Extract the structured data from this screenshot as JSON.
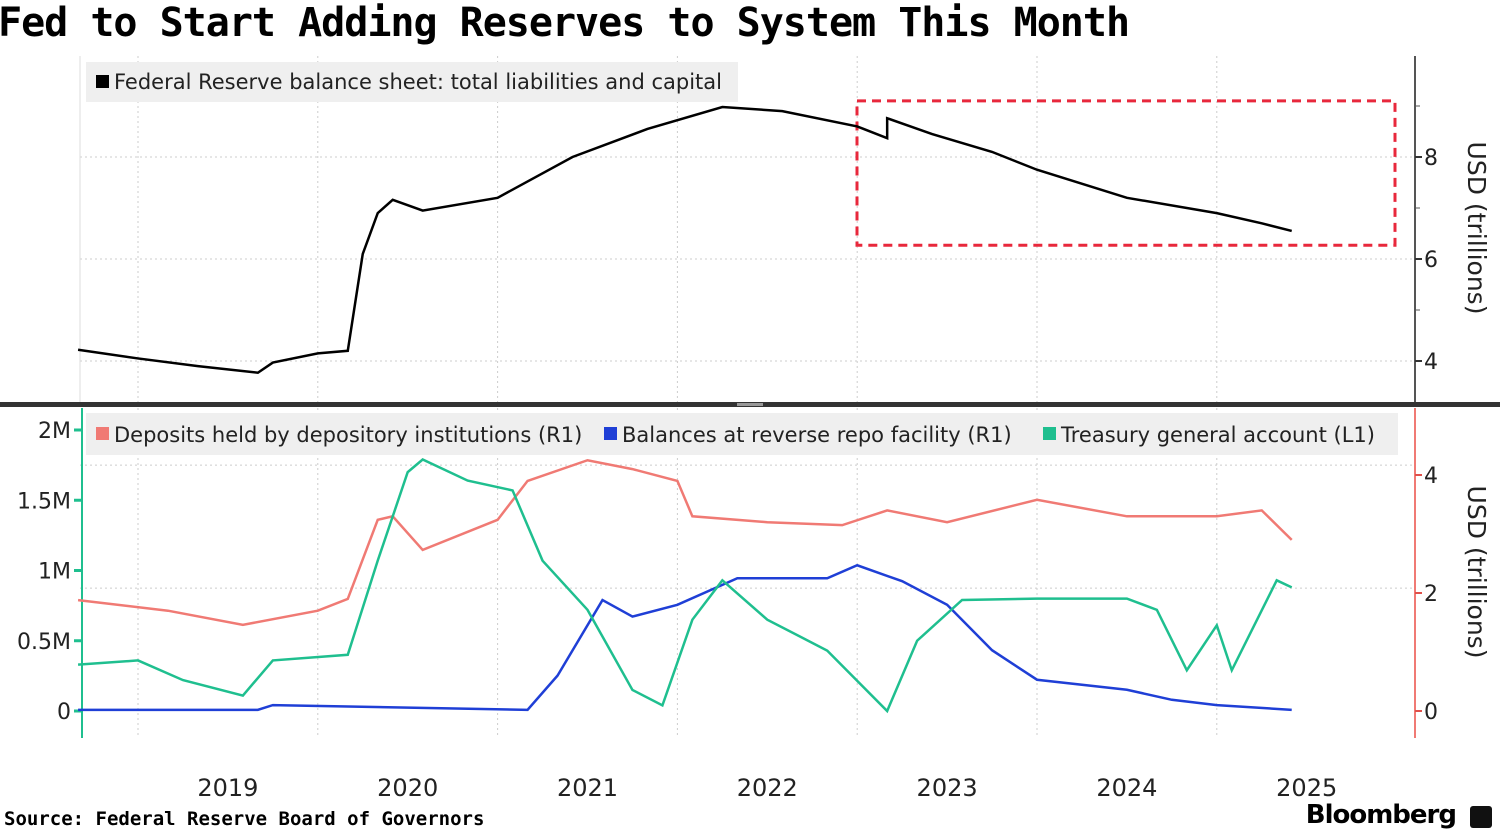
{
  "title": "Fed to Start Adding Reserves to System This Month",
  "source": "Source: Federal Reserve Board of Governors",
  "brand": "Bloomberg",
  "chart_data": [
    {
      "type": "line",
      "panel": "top",
      "ylabel": "USD (trillions)",
      "yaxis_side": "right",
      "ylim": [
        3.4,
        9.9
      ],
      "yticks": [
        "4",
        "6",
        "8"
      ],
      "grid": true,
      "legend_position": "top-left",
      "highlight_box": {
        "x_start": "2023-01",
        "x_end": "2025-09",
        "y_low": 6.27,
        "y_high": 9.1,
        "color": "#e8283c",
        "style": "dashed"
      },
      "series": [
        {
          "name": "Federal Reserve balance sheet: total liabilities and capital",
          "color": "#000000",
          "x": [
            "2018-09",
            "2019-01",
            "2019-05",
            "2019-09",
            "2019-10",
            "2020-01",
            "2020-03",
            "2020-04",
            "2020-05",
            "2020-06",
            "2020-08",
            "2021-01",
            "2021-06",
            "2021-11",
            "2022-04",
            "2022-08",
            "2023-01",
            "2023-03",
            "2023-03",
            "2023-06",
            "2023-10",
            "2024-01",
            "2024-07",
            "2025-01",
            "2025-04",
            "2025-06"
          ],
          "y": [
            4.22,
            4.05,
            3.9,
            3.77,
            3.97,
            4.15,
            4.2,
            6.1,
            6.9,
            7.16,
            6.95,
            7.2,
            8.0,
            8.55,
            8.98,
            8.9,
            8.6,
            8.37,
            8.76,
            8.45,
            8.1,
            7.75,
            7.2,
            6.9,
            6.7,
            6.55
          ]
        }
      ]
    },
    {
      "type": "line",
      "panel": "bottom",
      "xlabel": "",
      "xticks": [
        "2019",
        "2020",
        "2021",
        "2022",
        "2023",
        "2024",
        "2025"
      ],
      "left_axis": {
        "ylim": [
          -0.15,
          2.0
        ],
        "ticks": [
          "0",
          "0.5M",
          "1M",
          "1.5M",
          "2M"
        ],
        "color": "#1fbf8f"
      },
      "right_axis": {
        "label": "USD (trillions)",
        "ylim": [
          -0.4,
          4.8
        ],
        "ticks": [
          "0",
          "2",
          "4"
        ],
        "color": "#f07a74"
      },
      "grid": true,
      "legend_position": "top",
      "series": [
        {
          "name": "Deposits held by depository institutions (R1)",
          "axis": "right",
          "color": "#f07a74",
          "x": [
            "2018-09",
            "2019-03",
            "2019-08",
            "2020-01",
            "2020-03",
            "2020-05",
            "2020-06",
            "2020-08",
            "2021-01",
            "2021-03",
            "2021-07",
            "2021-10",
            "2022-01",
            "2022-02",
            "2022-07",
            "2022-12",
            "2023-03",
            "2023-07",
            "2024-01",
            "2024-07",
            "2025-01",
            "2025-04",
            "2025-06"
          ],
          "y": [
            1.88,
            1.7,
            1.46,
            1.7,
            1.9,
            3.24,
            3.3,
            2.73,
            3.24,
            3.9,
            4.25,
            4.1,
            3.9,
            3.3,
            3.2,
            3.15,
            3.4,
            3.2,
            3.58,
            3.3,
            3.3,
            3.4,
            2.9
          ]
        },
        {
          "name": "Balances at reverse repo facility (R1)",
          "axis": "right",
          "color": "#1f3fd6",
          "x": [
            "2018-09",
            "2019-09",
            "2019-10",
            "2021-03",
            "2021-05",
            "2021-08",
            "2021-10",
            "2022-01",
            "2022-05",
            "2022-11",
            "2023-01",
            "2023-04",
            "2023-07",
            "2023-10",
            "2024-01",
            "2024-07",
            "2024-10",
            "2025-01",
            "2025-06"
          ],
          "y": [
            0.02,
            0.02,
            0.1,
            0.02,
            0.6,
            1.88,
            1.6,
            1.8,
            2.25,
            2.25,
            2.47,
            2.2,
            1.8,
            1.03,
            0.53,
            0.36,
            0.19,
            0.1,
            0.02
          ]
        },
        {
          "name": "Treasury general account (L1)",
          "axis": "left",
          "color": "#1fbf8f",
          "x": [
            "2018-09",
            "2019-01",
            "2019-04",
            "2019-08",
            "2019-10",
            "2020-03",
            "2020-05",
            "2020-07",
            "2020-08",
            "2020-11",
            "2021-02",
            "2021-04",
            "2021-07",
            "2021-10",
            "2021-12",
            "2022-02",
            "2022-04",
            "2022-07",
            "2022-11",
            "2023-03",
            "2023-05",
            "2023-08",
            "2024-01",
            "2024-07",
            "2024-09",
            "2024-11",
            "2025-01",
            "2025-02",
            "2025-05",
            "2025-06"
          ],
          "y": [
            0.33,
            0.36,
            0.22,
            0.11,
            0.36,
            0.4,
            1.07,
            1.7,
            1.79,
            1.64,
            1.57,
            1.07,
            0.72,
            0.15,
            0.04,
            0.65,
            0.93,
            0.65,
            0.43,
            0.0,
            0.5,
            0.79,
            0.8,
            0.8,
            0.72,
            0.29,
            0.61,
            0.29,
            0.93,
            0.88
          ]
        }
      ]
    }
  ]
}
